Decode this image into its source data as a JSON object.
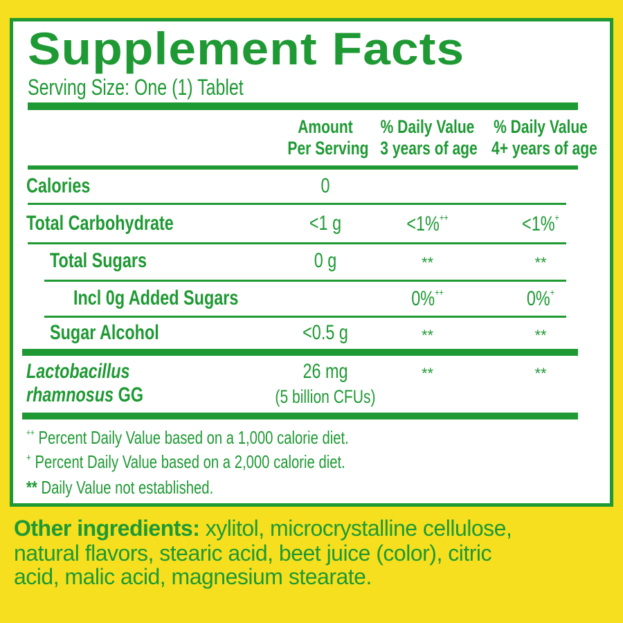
{
  "title": "Supplement Facts",
  "serving_size": "Serving Size: One (1) Tablet",
  "columns": {
    "amount": [
      "Amount",
      "Per Serving"
    ],
    "dv3": [
      "% Daily Value",
      "3 years of age"
    ],
    "dv4": [
      "% Daily Value",
      "4+ years of age"
    ]
  },
  "rows": [
    {
      "label": "Calories",
      "amount": "0",
      "dv3": "",
      "dv3_mark": "",
      "dv4": "",
      "dv4_mark": ""
    },
    {
      "label": "Total Carbohydrate",
      "amount": "<1 g",
      "dv3": "<1%",
      "dv3_mark": "++",
      "dv4": "<1%",
      "dv4_mark": "+"
    },
    {
      "label": "Total Sugars",
      "amount": "0 g",
      "dv3": "**",
      "dv3_mark": "",
      "dv4": "**",
      "dv4_mark": ""
    },
    {
      "label": "Incl 0g Added Sugars",
      "amount": "",
      "dv3": "0%",
      "dv3_mark": "++",
      "dv4": "0%",
      "dv4_mark": "+"
    },
    {
      "label": "Sugar Alcohol",
      "amount": "<0.5 g",
      "dv3": "**",
      "dv3_mark": "",
      "dv4": "**",
      "dv4_mark": ""
    }
  ],
  "probiotic": {
    "name_italic_1": "Lactobacillus",
    "name_italic_2": "rhamnosus",
    "name_suffix": "GG",
    "amount": "26 mg",
    "amount_note": "(5 billion CFUs)",
    "dv3": "**",
    "dv4": "**"
  },
  "footnotes": [
    {
      "mark": "++",
      "text": "Percent Daily Value based on a 1,000 calorie diet."
    },
    {
      "mark": "+",
      "text": "Percent Daily Value based on a 2,000 calorie diet."
    },
    {
      "mark": "**",
      "text": "Daily Value not established."
    }
  ],
  "ingredients": {
    "label": "Other ingredients:",
    "lines": [
      " xylitol, microcrystalline cellulose,",
      "natural flavors, stearic acid, beet juice (color), citric",
      "acid, malic acid, magnesium stearate."
    ]
  },
  "colors": {
    "background": "#f6df1f",
    "green": "#1e9933",
    "panel": "#ffffff"
  }
}
